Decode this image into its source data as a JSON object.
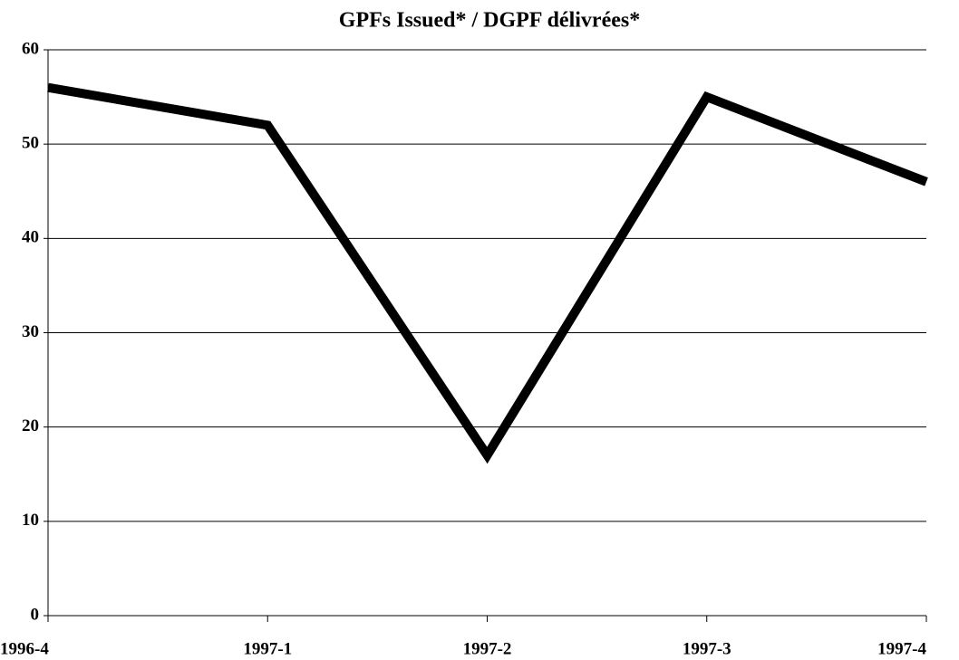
{
  "chart_data": {
    "type": "line",
    "title": "GPFs Issued* / DGPF délivrées*",
    "categories": [
      "1996-4",
      "1997-1",
      "1997-2",
      "1997-3",
      "1997-4"
    ],
    "values": [
      56,
      52,
      17,
      55,
      46
    ],
    "color": "#000000",
    "ylim": [
      0,
      60
    ],
    "yticks": [
      0,
      10,
      20,
      30,
      40,
      50,
      60
    ],
    "grid": true
  }
}
